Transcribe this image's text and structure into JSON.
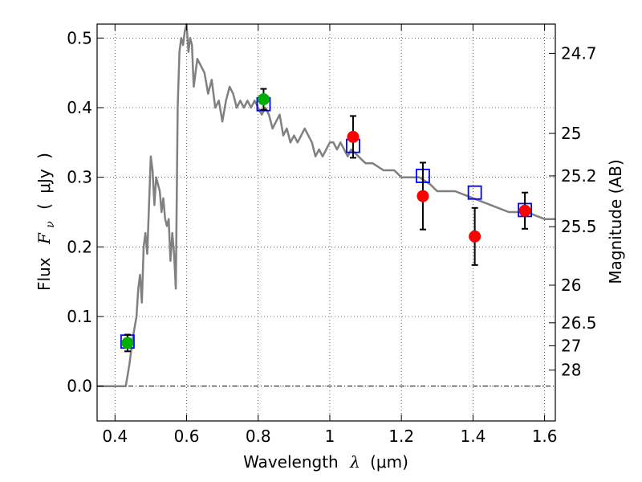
{
  "chart_data": {
    "type": "scatter",
    "xlabel": {
      "text": "Wavelength",
      "symbol": "λ",
      "unit": "(μm)"
    },
    "ylabel": {
      "text": "Flux",
      "symbol": "F",
      "subscript": "ν",
      "unit": "μJy"
    },
    "ylabel_right": "Magnitude (AB)",
    "xlim": [
      0.35,
      1.63
    ],
    "ylim": [
      -0.05,
      0.52
    ],
    "xticks": [
      0.4,
      0.6,
      0.8,
      1.0,
      1.2,
      1.4,
      1.6
    ],
    "xtick_labels": [
      "0.4",
      "0.6",
      "0.8",
      "1",
      "1.2",
      "1.4",
      "1.6"
    ],
    "yticks": [
      0.0,
      0.1,
      0.2,
      0.3,
      0.4,
      0.5
    ],
    "ytick_labels": [
      "0.0",
      "0.1",
      "0.2",
      "0.3",
      "0.4",
      "0.5"
    ],
    "right_ticks": [
      {
        "label": "24.7",
        "flux": 0.478
      },
      {
        "label": "25",
        "flux": 0.363
      },
      {
        "label": "25.2",
        "flux": 0.302
      },
      {
        "label": "25.5",
        "flux": 0.229
      },
      {
        "label": "26",
        "flux": 0.145
      },
      {
        "label": "26.5",
        "flux": 0.091
      },
      {
        "label": "27",
        "flux": 0.058
      },
      {
        "label": "28",
        "flux": 0.023
      }
    ],
    "grid": true,
    "series": [
      {
        "name": "template spectrum",
        "kind": "line",
        "color": "#808080",
        "x": [
          0.35,
          0.43,
          0.44,
          0.45,
          0.46,
          0.465,
          0.47,
          0.475,
          0.48,
          0.485,
          0.49,
          0.495,
          0.5,
          0.505,
          0.51,
          0.515,
          0.52,
          0.525,
          0.53,
          0.535,
          0.54,
          0.545,
          0.55,
          0.555,
          0.56,
          0.565,
          0.57,
          0.575,
          0.58,
          0.585,
          0.59,
          0.595,
          0.6,
          0.605,
          0.61,
          0.615,
          0.62,
          0.63,
          0.64,
          0.65,
          0.66,
          0.67,
          0.68,
          0.69,
          0.7,
          0.71,
          0.72,
          0.73,
          0.74,
          0.75,
          0.76,
          0.77,
          0.78,
          0.79,
          0.8,
          0.81,
          0.82,
          0.83,
          0.84,
          0.85,
          0.86,
          0.87,
          0.88,
          0.89,
          0.9,
          0.91,
          0.92,
          0.93,
          0.94,
          0.95,
          0.96,
          0.97,
          0.98,
          0.99,
          1.0,
          1.01,
          1.02,
          1.03,
          1.04,
          1.05,
          1.06,
          1.08,
          1.1,
          1.12,
          1.15,
          1.18,
          1.2,
          1.22,
          1.25,
          1.28,
          1.3,
          1.35,
          1.4,
          1.45,
          1.5,
          1.55,
          1.6,
          1.63
        ],
        "y": [
          0.0,
          0.0,
          0.03,
          0.07,
          0.1,
          0.14,
          0.16,
          0.12,
          0.2,
          0.22,
          0.19,
          0.26,
          0.33,
          0.31,
          0.26,
          0.3,
          0.29,
          0.28,
          0.25,
          0.27,
          0.24,
          0.23,
          0.24,
          0.18,
          0.22,
          0.19,
          0.14,
          0.4,
          0.48,
          0.5,
          0.49,
          0.51,
          0.52,
          0.48,
          0.5,
          0.49,
          0.43,
          0.47,
          0.46,
          0.45,
          0.42,
          0.44,
          0.4,
          0.41,
          0.38,
          0.41,
          0.43,
          0.42,
          0.4,
          0.41,
          0.4,
          0.41,
          0.4,
          0.41,
          0.4,
          0.39,
          0.4,
          0.39,
          0.37,
          0.38,
          0.39,
          0.36,
          0.37,
          0.35,
          0.36,
          0.35,
          0.36,
          0.37,
          0.36,
          0.35,
          0.33,
          0.34,
          0.33,
          0.34,
          0.35,
          0.35,
          0.34,
          0.35,
          0.34,
          0.33,
          0.34,
          0.33,
          0.32,
          0.32,
          0.31,
          0.31,
          0.3,
          0.3,
          0.3,
          0.29,
          0.28,
          0.28,
          0.27,
          0.26,
          0.25,
          0.25,
          0.24,
          0.24
        ]
      },
      {
        "name": "green points",
        "kind": "marker",
        "color": "#00b000",
        "points": [
          {
            "x": 0.435,
            "y": 0.062,
            "err": 0.012
          },
          {
            "x": 0.815,
            "y": 0.412,
            "err": 0.015
          }
        ]
      },
      {
        "name": "red points",
        "kind": "marker",
        "color": "#ff0000",
        "points": [
          {
            "x": 1.065,
            "y": 0.358,
            "err": 0.03
          },
          {
            "x": 1.26,
            "y": 0.273,
            "err": 0.048
          },
          {
            "x": 1.405,
            "y": 0.215,
            "err": 0.041
          },
          {
            "x": 1.545,
            "y": 0.252,
            "err": 0.026
          }
        ]
      },
      {
        "name": "model band fluxes",
        "kind": "square",
        "color": "#0000ff",
        "points": [
          {
            "x": 0.435,
            "y": 0.064
          },
          {
            "x": 0.815,
            "y": 0.405
          },
          {
            "x": 1.065,
            "y": 0.345
          },
          {
            "x": 1.26,
            "y": 0.302
          },
          {
            "x": 1.405,
            "y": 0.278
          },
          {
            "x": 1.545,
            "y": 0.253
          }
        ]
      }
    ]
  }
}
